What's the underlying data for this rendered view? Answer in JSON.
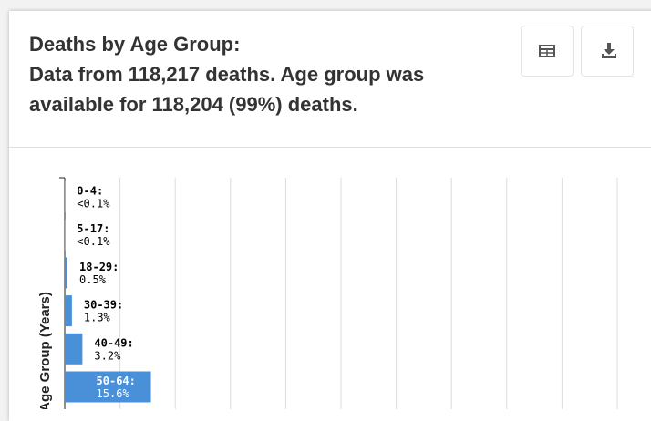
{
  "chart_data": {
    "type": "barh",
    "title": "Deaths by Age Group:",
    "subtitle": "Data from 118,217 deaths. Age group was available for 118,204 (99%) deaths.",
    "y_label": "Age Group (Years)",
    "categories": [
      "0-4:",
      "5-17:",
      "18-29:",
      "30-39:",
      "40-49:",
      "50-64:"
    ],
    "values": [
      0.05,
      0.05,
      0.5,
      1.3,
      3.2,
      15.6
    ],
    "value_labels": [
      "<0.1%",
      "<0.1%",
      "0.5%",
      "1.3%",
      "3.2%",
      "15.6%"
    ],
    "color": "#4a90d9",
    "xlim": [
      0,
      100
    ],
    "xticks": [
      0,
      10,
      20,
      30,
      40,
      50,
      60,
      70,
      80,
      90,
      100
    ],
    "grid": true
  }
}
